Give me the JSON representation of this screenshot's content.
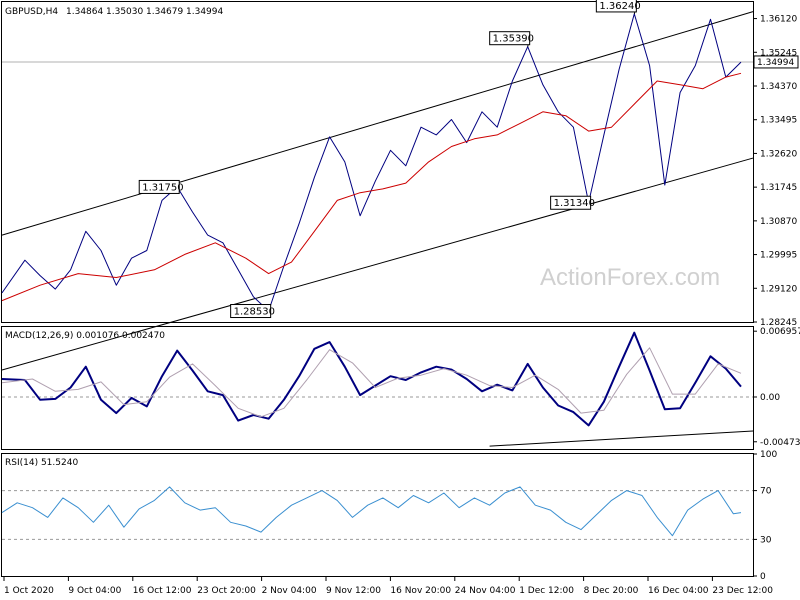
{
  "chart_data": [
    {
      "type": "line",
      "panel": "price",
      "title": "GBPUSD,H4",
      "ohlc": [
        "1.34864",
        "1.35030",
        "1.34679",
        "1.34994"
      ],
      "ylim": [
        1.28245,
        1.3655
      ],
      "y_ticks": [
        "1.36120",
        "1.35245",
        "1.34370",
        "1.33495",
        "1.32620",
        "1.31745",
        "1.30870",
        "1.29995",
        "1.29120",
        "1.28245"
      ],
      "current_price": "1.34994",
      "x_ticks": [
        "1 Oct 2020",
        "9 Oct 04:00",
        "16 Oct 12:00",
        "23 Oct 20:00",
        "2 Nov 04:00",
        "9 Nov 12:00",
        "16 Nov 20:00",
        "24 Nov 04:00",
        "1 Dec 12:00",
        "8 Dec 20:00",
        "16 Dec 04:00",
        "23 Dec 12:00"
      ],
      "series": [
        {
          "points": [
            [
              0,
              1.29
            ],
            [
              6,
              1.2985
            ],
            [
              10,
              1.2945
            ],
            [
              14,
              1.291
            ],
            [
              18,
              1.296
            ],
            [
              22,
              1.306
            ],
            [
              26,
              1.301
            ],
            [
              30,
              1.292
            ],
            [
              34,
              1.299
            ],
            [
              38,
              1.301
            ],
            [
              42,
              1.314
            ],
            [
              46,
              1.3175
            ],
            [
              50,
              1.311
            ],
            [
              54,
              1.305
            ],
            [
              58,
              1.303
            ],
            [
              62,
              1.296
            ],
            [
              66,
              1.289
            ],
            [
              70,
              1.2853
            ],
            [
              74,
              1.297
            ],
            [
              78,
              1.308
            ],
            [
              82,
              1.32
            ],
            [
              86,
              1.3305
            ],
            [
              90,
              1.324
            ],
            [
              94,
              1.31
            ],
            [
              98,
              1.319
            ],
            [
              102,
              1.327
            ],
            [
              106,
              1.323
            ],
            [
              110,
              1.333
            ],
            [
              114,
              1.331
            ],
            [
              118,
              1.335
            ],
            [
              122,
              1.329
            ],
            [
              126,
              1.337
            ],
            [
              130,
              1.333
            ],
            [
              134,
              1.345
            ],
            [
              138,
              1.3539
            ],
            [
              142,
              1.344
            ],
            [
              146,
              1.337
            ],
            [
              150,
              1.333
            ],
            [
              154,
              1.3134
            ],
            [
              158,
              1.331
            ],
            [
              162,
              1.348
            ],
            [
              166,
              1.3624
            ],
            [
              170,
              1.349
            ],
            [
              174,
              1.318
            ],
            [
              178,
              1.342
            ],
            [
              182,
              1.349
            ],
            [
              186,
              1.361
            ],
            [
              190,
              1.346
            ],
            [
              194,
              1.3499
            ]
          ]
        },
        {
          "points": [
            [
              0,
              1.288
            ],
            [
              10,
              1.292
            ],
            [
              20,
              1.295
            ],
            [
              30,
              1.294
            ],
            [
              40,
              1.296
            ],
            [
              48,
              1.3
            ],
            [
              56,
              1.303
            ],
            [
              64,
              1.299
            ],
            [
              70,
              1.295
            ],
            [
              76,
              1.298
            ],
            [
              82,
              1.306
            ],
            [
              88,
              1.314
            ],
            [
              94,
              1.316
            ],
            [
              100,
              1.317
            ],
            [
              106,
              1.3185
            ],
            [
              112,
              1.324
            ],
            [
              118,
              1.328
            ],
            [
              124,
              1.33
            ],
            [
              130,
              1.331
            ],
            [
              136,
              1.334
            ],
            [
              142,
              1.337
            ],
            [
              148,
              1.336
            ],
            [
              154,
              1.332
            ],
            [
              160,
              1.333
            ],
            [
              166,
              1.339
            ],
            [
              172,
              1.345
            ],
            [
              178,
              1.344
            ],
            [
              184,
              1.343
            ],
            [
              190,
              1.346
            ],
            [
              194,
              1.347
            ]
          ]
        }
      ],
      "trend_lines": [
        {
          "from": [
            0,
            1.305
          ],
          "to": [
            194,
            1.363
          ]
        },
        {
          "from": [
            0,
            1.27
          ],
          "to": [
            194,
            1.325
          ]
        }
      ],
      "annotations": [
        {
          "text": "1.31750",
          "x": 46,
          "y": 1.3175
        },
        {
          "text": "1.28530",
          "x": 70,
          "y": 1.2853
        },
        {
          "text": "1.35390",
          "x": 138,
          "y": 1.3539
        },
        {
          "text": "1.31340",
          "x": 154,
          "y": 1.3134
        },
        {
          "text": "1.36240",
          "x": 166,
          "y": 1.3624
        }
      ],
      "watermark": "ActionForex.com"
    },
    {
      "type": "line",
      "panel": "macd",
      "title": "MACD(12,26,9) 0.001076 0.002470",
      "ylim": [
        -0.0055,
        0.0074
      ],
      "y_ticks": [
        "0.006957",
        "0.00",
        "-0.004736"
      ],
      "series": [
        {
          "points": [
            [
              0,
              0.0019
            ],
            [
              6,
              0.0018
            ],
            [
              10,
              -0.0003
            ],
            [
              14,
              -0.0002
            ],
            [
              18,
              0.001
            ],
            [
              22,
              0.0032
            ],
            [
              26,
              -0.0003
            ],
            [
              30,
              -0.0017
            ],
            [
              34,
              -0.0001
            ],
            [
              38,
              -0.001
            ],
            [
              42,
              0.0022
            ],
            [
              46,
              0.0049
            ],
            [
              50,
              0.0028
            ],
            [
              54,
              0.0006
            ],
            [
              58,
              0.0002
            ],
            [
              62,
              -0.0025
            ],
            [
              66,
              -0.0019
            ],
            [
              70,
              -0.0023
            ],
            [
              74,
              -0.0003
            ],
            [
              78,
              0.0022
            ],
            [
              82,
              0.0051
            ],
            [
              86,
              0.0058
            ],
            [
              90,
              0.0032
            ],
            [
              94,
              0.0002
            ],
            [
              98,
              0.0012
            ],
            [
              102,
              0.0022
            ],
            [
              106,
              0.0018
            ],
            [
              110,
              0.0026
            ],
            [
              114,
              0.0032
            ],
            [
              118,
              0.0029
            ],
            [
              122,
              0.0019
            ],
            [
              126,
              0.0006
            ],
            [
              130,
              0.0013
            ],
            [
              134,
              0.0007
            ],
            [
              138,
              0.0035
            ],
            [
              142,
              0.001
            ],
            [
              146,
              -0.0009
            ],
            [
              150,
              -0.0016
            ],
            [
              154,
              -0.003
            ],
            [
              158,
              -0.0005
            ],
            [
              162,
              0.0032
            ],
            [
              166,
              0.0068
            ],
            [
              170,
              0.0028
            ],
            [
              174,
              -0.0013
            ],
            [
              178,
              -0.0012
            ],
            [
              182,
              0.0015
            ],
            [
              186,
              0.0043
            ],
            [
              190,
              0.003
            ],
            [
              194,
              0.0011
            ]
          ]
        },
        {
          "points": [
            [
              0,
              0.0015
            ],
            [
              8,
              0.0019
            ],
            [
              14,
              0.0006
            ],
            [
              20,
              0.0008
            ],
            [
              26,
              0.0016
            ],
            [
              32,
              -0.0008
            ],
            [
              38,
              -0.0005
            ],
            [
              44,
              0.0021
            ],
            [
              50,
              0.0035
            ],
            [
              56,
              0.0012
            ],
            [
              62,
              -0.0012
            ],
            [
              68,
              -0.0021
            ],
            [
              74,
              -0.0012
            ],
            [
              80,
              0.0018
            ],
            [
              86,
              0.005
            ],
            [
              92,
              0.0036
            ],
            [
              98,
              0.001
            ],
            [
              104,
              0.002
            ],
            [
              110,
              0.0023
            ],
            [
              116,
              0.003
            ],
            [
              122,
              0.0023
            ],
            [
              128,
              0.0012
            ],
            [
              134,
              0.001
            ],
            [
              140,
              0.0023
            ],
            [
              146,
              0.0008
            ],
            [
              152,
              -0.0017
            ],
            [
              158,
              -0.0014
            ],
            [
              164,
              0.0024
            ],
            [
              170,
              0.0052
            ],
            [
              176,
              0.0003
            ],
            [
              182,
              0.0003
            ],
            [
              188,
              0.0035
            ],
            [
              194,
              0.0025
            ]
          ]
        }
      ],
      "trend_lines": [
        {
          "from": [
            128,
            -0.0052
          ],
          "to": [
            194,
            -0.0036
          ]
        }
      ]
    },
    {
      "type": "line",
      "panel": "rsi",
      "title": "RSI(14) 51.5240",
      "ylim": [
        0,
        100
      ],
      "y_ticks": [
        "100",
        "70",
        "30",
        "0"
      ],
      "levels": [
        70,
        30
      ],
      "series": [
        {
          "points": [
            [
              0,
              52
            ],
            [
              4,
              60
            ],
            [
              8,
              56
            ],
            [
              12,
              48
            ],
            [
              16,
              64
            ],
            [
              20,
              56
            ],
            [
              24,
              44
            ],
            [
              28,
              58
            ],
            [
              32,
              40
            ],
            [
              36,
              55
            ],
            [
              40,
              62
            ],
            [
              44,
              73
            ],
            [
              48,
              60
            ],
            [
              52,
              54
            ],
            [
              56,
              56
            ],
            [
              60,
              44
            ],
            [
              64,
              41
            ],
            [
              68,
              36
            ],
            [
              72,
              48
            ],
            [
              76,
              58
            ],
            [
              80,
              64
            ],
            [
              84,
              70
            ],
            [
              88,
              62
            ],
            [
              92,
              48
            ],
            [
              96,
              58
            ],
            [
              100,
              64
            ],
            [
              104,
              56
            ],
            [
              108,
              66
            ],
            [
              112,
              60
            ],
            [
              116,
              68
            ],
            [
              120,
              56
            ],
            [
              124,
              64
            ],
            [
              128,
              58
            ],
            [
              132,
              68
            ],
            [
              136,
              73
            ],
            [
              140,
              58
            ],
            [
              144,
              54
            ],
            [
              148,
              44
            ],
            [
              152,
              38
            ],
            [
              156,
              50
            ],
            [
              160,
              62
            ],
            [
              164,
              70
            ],
            [
              168,
              66
            ],
            [
              172,
              48
            ],
            [
              176,
              33
            ],
            [
              180,
              54
            ],
            [
              184,
              63
            ],
            [
              188,
              70
            ],
            [
              192,
              51
            ],
            [
              194,
              52
            ]
          ]
        }
      ]
    }
  ]
}
